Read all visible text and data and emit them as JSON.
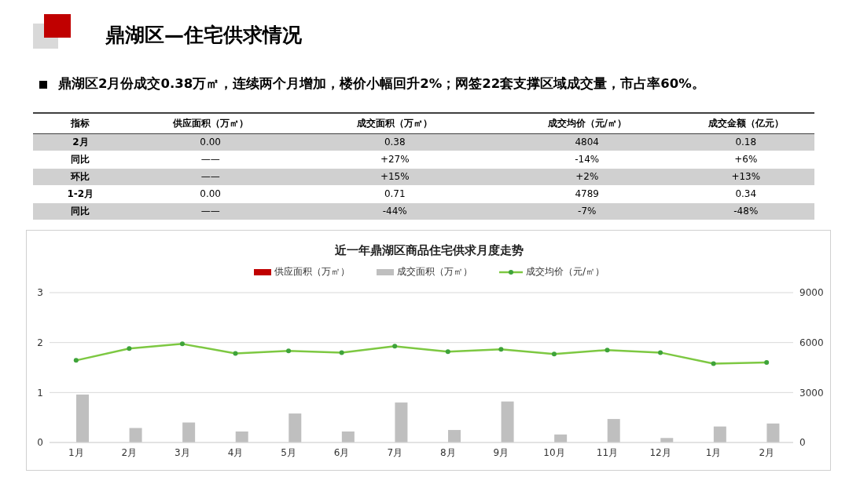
{
  "chart_data": [
    {
      "type": "other",
      "title": "鼎湖区—住宅供求情况",
      "subtitle": "鼎湖区2月份成交0.38万㎡，连续两个月增加，楼价小幅回升2%；网签22套支撑区域成交量，市占率60%。",
      "ylabel": "指标",
      "categories": [
        "供应面积（万㎡）",
        "成交面积（万㎡）",
        "成交均价（元/㎡）",
        "成交金额（亿元）"
      ],
      "y_categories": [
        "2月",
        "同比",
        "环比",
        "1-2月",
        "同比"
      ],
      "cell_labels": [
        [
          "0.00",
          "0.38",
          "4804",
          "0.18"
        ],
        [
          "——",
          "+27%",
          "-14%",
          "+6%"
        ],
        [
          "——",
          "+15%",
          "+2%",
          "+13%"
        ],
        [
          "0.00",
          "0.71",
          "4789",
          "0.34"
        ],
        [
          "——",
          "-44%",
          "-7%",
          "-48%"
        ]
      ]
    },
    {
      "type": "bar",
      "title": "近一年鼎湖区商品住宅供求月度走势",
      "categories": [
        "1月",
        "2月",
        "3月",
        "4月",
        "5月",
        "6月",
        "7月",
        "8月",
        "9月",
        "10月",
        "11月",
        "12月",
        "1月",
        "2月"
      ],
      "series": [
        {
          "name": "供应面积（万㎡）",
          "type": "bar",
          "color": "#c00000",
          "values": [
            0,
            0,
            0,
            0,
            0,
            0,
            0,
            0,
            0,
            0,
            0,
            0,
            0,
            0
          ]
        },
        {
          "name": "成交面积（万㎡）",
          "type": "bar",
          "color": "#bfbfbf",
          "values": [
            0.96,
            0.29,
            0.4,
            0.22,
            0.58,
            0.22,
            0.8,
            0.25,
            0.82,
            0.16,
            0.47,
            0.09,
            0.32,
            0.38
          ]
        },
        {
          "name": "成交均价（元/㎡）",
          "type": "line",
          "axis": "y2",
          "color": "#7dc842",
          "values": [
            4930,
            5640,
            5920,
            5350,
            5500,
            5400,
            5780,
            5450,
            5590,
            5310,
            5550,
            5400,
            4740,
            4804
          ]
        }
      ],
      "ylim": [
        0,
        3
      ],
      "yticks": [
        0,
        1,
        2,
        3
      ],
      "y2lim": [
        0,
        9000
      ],
      "y2ticks": [
        0,
        3000,
        6000,
        9000
      ],
      "grid": "y",
      "legend": "top",
      "marker": "circle"
    }
  ]
}
